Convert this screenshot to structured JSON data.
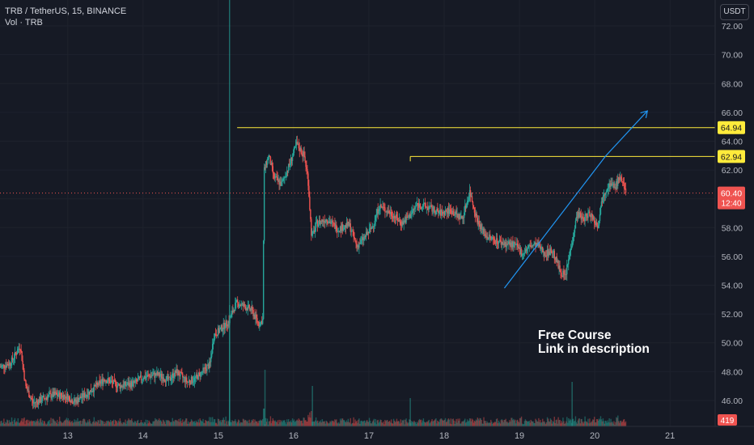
{
  "header": {
    "symbol_line": "TRB / TetherUS, 15, BINANCE",
    "volume_line": "Vol · TRB",
    "currency_button": "USDT"
  },
  "annotation": {
    "line1": "Free Course",
    "line2": "Link in description"
  },
  "colors": {
    "background": "#161a25",
    "grid": "#1e222d",
    "up": "#26a69a",
    "down": "#ef5350",
    "level": "#ffeb3b",
    "trend": "#2196f3",
    "axis_text": "#b2b5be"
  },
  "chart_data": {
    "type": "candlestick",
    "title": "TRB / TetherUS, 15, BINANCE",
    "xlabel": "",
    "ylabel": "",
    "y_ticks": [
      46,
      48,
      50,
      52,
      54,
      56,
      58,
      60,
      62,
      64,
      66,
      68,
      70,
      72
    ],
    "y_tick_labels": [
      "46.00",
      "48.00",
      "50.00",
      "52.00",
      "54.00",
      "56.00",
      "58.00",
      "60.00",
      "62.00",
      "64.00",
      "66.00",
      "68.00",
      "70.00",
      "72.00"
    ],
    "ylim": [
      44.2,
      73.8
    ],
    "x_ticks": [
      "13",
      "14",
      "15",
      "16",
      "17",
      "18",
      "19",
      "20",
      "21"
    ],
    "xlim": [
      12.1,
      21.6
    ],
    "grid": true,
    "levels": [
      {
        "price": 64.94,
        "label": "64.94",
        "from_day": 15.25
      },
      {
        "price": 62.94,
        "label": "62.94",
        "from_day": 17.55
      }
    ],
    "last_price": {
      "value": 60.4,
      "label": "60.40",
      "countdown": "12:40"
    },
    "volume_label": "419",
    "trendline": {
      "from": [
        18.8,
        53.8
      ],
      "to": [
        20.15,
        63.0
      ]
    },
    "arrow": {
      "from": [
        20.15,
        63.0
      ],
      "to": [
        20.7,
        66.1
      ]
    },
    "news_marker_day": 15.15,
    "price_path": [
      [
        12.1,
        48.3
      ],
      [
        12.25,
        48.6
      ],
      [
        12.38,
        49.8
      ],
      [
        12.45,
        47.0
      ],
      [
        12.55,
        45.8
      ],
      [
        12.8,
        46.4
      ],
      [
        13.0,
        46.3
      ],
      [
        13.1,
        45.9
      ],
      [
        13.3,
        46.6
      ],
      [
        13.5,
        47.5
      ],
      [
        13.7,
        47.0
      ],
      [
        13.9,
        47.2
      ],
      [
        14.0,
        47.6
      ],
      [
        14.2,
        47.8
      ],
      [
        14.35,
        47.4
      ],
      [
        14.45,
        48.0
      ],
      [
        14.6,
        47.3
      ],
      [
        14.7,
        47.5
      ],
      [
        14.9,
        48.5
      ],
      [
        14.95,
        50.5
      ],
      [
        15.05,
        51.0
      ],
      [
        15.15,
        51.5
      ],
      [
        15.25,
        52.8
      ],
      [
        15.45,
        52.3
      ],
      [
        15.55,
        51.3
      ],
      [
        15.6,
        51.6
      ],
      [
        15.62,
        62.0
      ],
      [
        15.68,
        63.0
      ],
      [
        15.75,
        61.5
      ],
      [
        15.85,
        61.0
      ],
      [
        15.95,
        62.3
      ],
      [
        16.05,
        63.8
      ],
      [
        16.15,
        63.0
      ],
      [
        16.2,
        61.5
      ],
      [
        16.25,
        57.3
      ],
      [
        16.32,
        58.3
      ],
      [
        16.45,
        58.6
      ],
      [
        16.6,
        57.9
      ],
      [
        16.75,
        58.2
      ],
      [
        16.85,
        56.7
      ],
      [
        16.95,
        57.3
      ],
      [
        17.05,
        58.0
      ],
      [
        17.15,
        59.5
      ],
      [
        17.3,
        59.0
      ],
      [
        17.45,
        58.3
      ],
      [
        17.55,
        58.8
      ],
      [
        17.65,
        59.6
      ],
      [
        17.8,
        59.4
      ],
      [
        17.95,
        59.0
      ],
      [
        18.1,
        59.2
      ],
      [
        18.25,
        58.6
      ],
      [
        18.35,
        60.5
      ],
      [
        18.45,
        58.5
      ],
      [
        18.55,
        57.5
      ],
      [
        18.65,
        57.2
      ],
      [
        18.8,
        56.9
      ],
      [
        18.95,
        56.8
      ],
      [
        19.05,
        56.2
      ],
      [
        19.15,
        56.7
      ],
      [
        19.25,
        56.8
      ],
      [
        19.35,
        56.2
      ],
      [
        19.45,
        56.4
      ],
      [
        19.55,
        55.0
      ],
      [
        19.62,
        54.6
      ],
      [
        19.7,
        56.8
      ],
      [
        19.78,
        59.0
      ],
      [
        19.85,
        58.6
      ],
      [
        19.95,
        59.0
      ],
      [
        20.05,
        58.1
      ],
      [
        20.12,
        60.3
      ],
      [
        20.2,
        61.0
      ],
      [
        20.28,
        60.8
      ],
      [
        20.35,
        61.6
      ],
      [
        20.42,
        60.4
      ]
    ]
  }
}
